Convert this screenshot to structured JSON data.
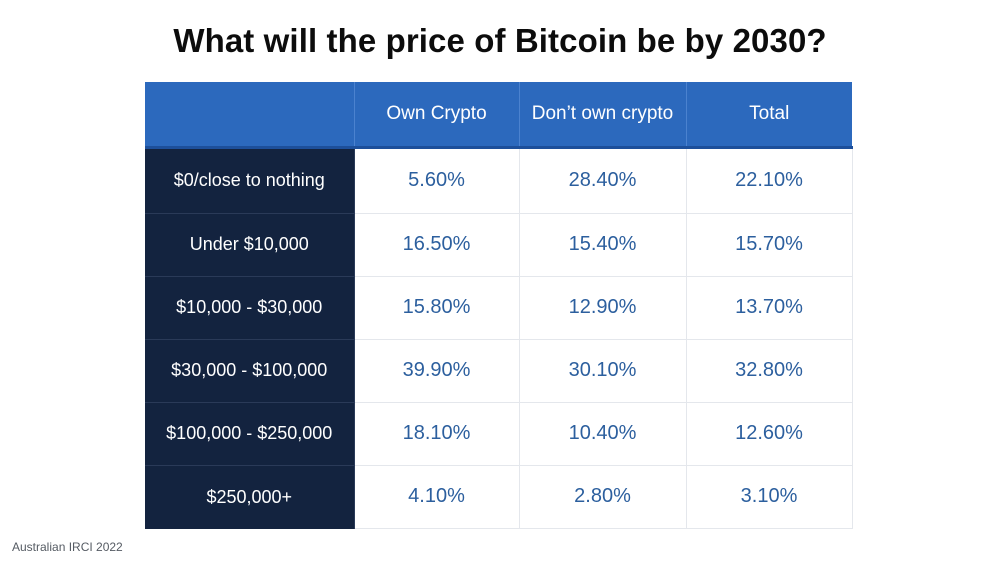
{
  "title": "What will the price of Bitcoin be by 2030?",
  "source": "Australian IRCI 2022",
  "colors": {
    "header_bg": "#2c69bd",
    "row_label_bg": "#13233f",
    "value_text": "#2c5f9e"
  },
  "chart_data": {
    "type": "table",
    "title": "What will the price of Bitcoin be by 2030?",
    "columns": [
      "",
      "Own Crypto",
      "Don’t own crypto",
      "Total"
    ],
    "rows": [
      {
        "label": "$0/close to nothing",
        "values": [
          "5.60%",
          "28.40%",
          "22.10%"
        ]
      },
      {
        "label": "Under $10,000",
        "values": [
          "16.50%",
          "15.40%",
          "15.70%"
        ]
      },
      {
        "label": "$10,000 - $30,000",
        "values": [
          "15.80%",
          "12.90%",
          "13.70%"
        ]
      },
      {
        "label": "$30,000 - $100,000",
        "values": [
          "39.90%",
          "30.10%",
          "32.80%"
        ]
      },
      {
        "label": "$100,000 - $250,000",
        "values": [
          "18.10%",
          "10.40%",
          "12.60%"
        ]
      },
      {
        "label": "$250,000+",
        "values": [
          "4.10%",
          "2.80%",
          "3.10%"
        ]
      }
    ]
  }
}
